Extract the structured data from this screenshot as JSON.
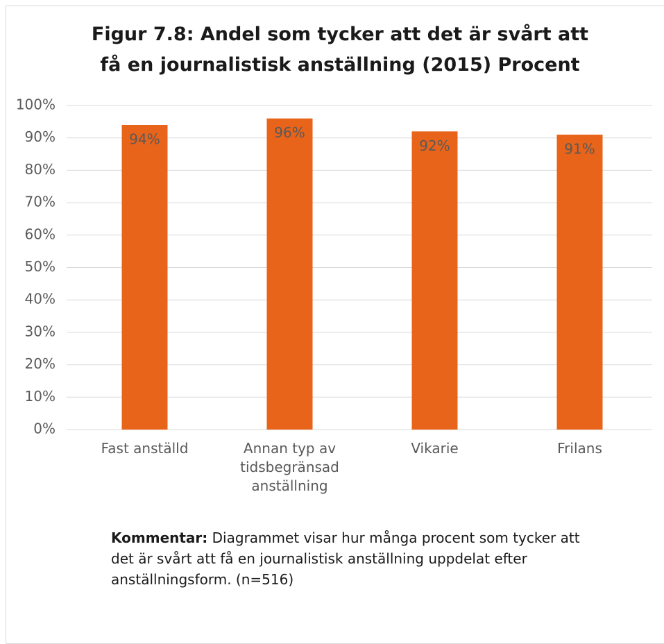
{
  "chart_data": {
    "type": "bar",
    "title": "Figur 7.8: Andel som tycker att det är svårt att få en journalistisk anställning (2015) Procent",
    "categories": [
      "Fast anställd",
      "Annan typ av tidsbegränsad anställning",
      "Vikarie",
      "Frilans"
    ],
    "values": [
      94,
      96,
      92,
      91
    ],
    "value_labels": [
      "94%",
      "96%",
      "92%",
      "91%"
    ],
    "color": "#e8641a",
    "ylim": [
      0,
      100
    ],
    "yticks": [
      {
        "value": 0,
        "label": "0%"
      },
      {
        "value": 10,
        "label": "10%"
      },
      {
        "value": 20,
        "label": "20%"
      },
      {
        "value": 30,
        "label": "30%"
      },
      {
        "value": 40,
        "label": "40%"
      },
      {
        "value": 50,
        "label": "50%"
      },
      {
        "value": 60,
        "label": "60%"
      },
      {
        "value": 70,
        "label": "70%"
      },
      {
        "value": 80,
        "label": "80%"
      },
      {
        "value": 90,
        "label": "90%"
      },
      {
        "value": 100,
        "label": "100%"
      }
    ],
    "grid": true,
    "note": {
      "label": "Kommentar:",
      "text": "Diagrammet visar hur många procent som tycker att det är svårt att få en journalistisk anställning uppdelat efter anställningsform. (n=516)"
    }
  }
}
